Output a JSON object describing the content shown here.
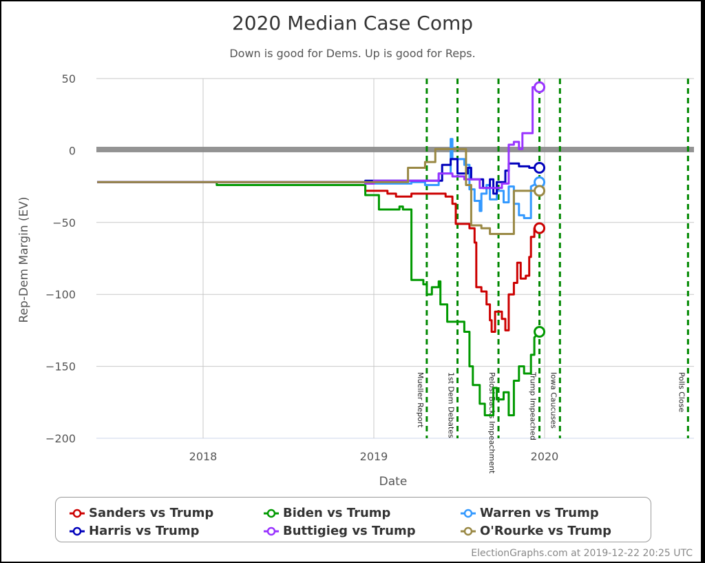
{
  "chart_data": {
    "type": "line",
    "title": "2020 Median Case Comp",
    "subtitle": "Down is good for Dems. Up is good for Reps.",
    "xlabel": "Date",
    "ylabel": "Rep-Dem Margin (EV)",
    "ylim": [
      -200,
      50
    ],
    "yticks": [
      50,
      0,
      -50,
      -100,
      -150,
      -200
    ],
    "xticks": [
      "2018",
      "2019",
      "2020"
    ],
    "xlim": [
      "2017-05",
      "2020-11-03"
    ],
    "grid": true,
    "legend_position": "bottom",
    "zero_line": 0,
    "events": [
      {
        "label": "Mueller Report",
        "date": 2019.31
      },
      {
        "label": "1st Dem Debates",
        "date": 2019.49
      },
      {
        "label": "Pelosi Backs Impeachment",
        "date": 2019.73
      },
      {
        "label": "Trump Impeached",
        "date": 2019.97
      },
      {
        "label": "Iowa Caucuses",
        "date": 2020.09
      },
      {
        "label": "Polls Close",
        "date": 2020.84
      }
    ],
    "series": [
      {
        "name": "Sanders vs Trump",
        "color": "#cc0000",
        "final": -54,
        "points": [
          [
            2017.38,
            -22
          ],
          [
            2018.95,
            -22
          ],
          [
            2018.95,
            -28
          ],
          [
            2019.08,
            -28
          ],
          [
            2019.08,
            -30
          ],
          [
            2019.13,
            -30
          ],
          [
            2019.13,
            -32
          ],
          [
            2019.22,
            -32
          ],
          [
            2019.22,
            -30
          ],
          [
            2019.42,
            -30
          ],
          [
            2019.42,
            -32
          ],
          [
            2019.46,
            -32
          ],
          [
            2019.46,
            -37
          ],
          [
            2019.48,
            -37
          ],
          [
            2019.48,
            -51
          ],
          [
            2019.56,
            -51
          ],
          [
            2019.56,
            -54
          ],
          [
            2019.59,
            -54
          ],
          [
            2019.59,
            -64
          ],
          [
            2019.6,
            -64
          ],
          [
            2019.6,
            -95
          ],
          [
            2019.63,
            -95
          ],
          [
            2019.63,
            -98
          ],
          [
            2019.66,
            -98
          ],
          [
            2019.66,
            -107
          ],
          [
            2019.68,
            -107
          ],
          [
            2019.68,
            -118
          ],
          [
            2019.69,
            -118
          ],
          [
            2019.69,
            -126
          ],
          [
            2019.71,
            -126
          ],
          [
            2019.71,
            -112
          ],
          [
            2019.75,
            -112
          ],
          [
            2019.75,
            -117
          ],
          [
            2019.77,
            -117
          ],
          [
            2019.77,
            -125
          ],
          [
            2019.79,
            -125
          ],
          [
            2019.79,
            -100
          ],
          [
            2019.82,
            -100
          ],
          [
            2019.82,
            -92
          ],
          [
            2019.84,
            -92
          ],
          [
            2019.84,
            -78
          ],
          [
            2019.86,
            -78
          ],
          [
            2019.86,
            -89
          ],
          [
            2019.89,
            -89
          ],
          [
            2019.89,
            -87
          ],
          [
            2019.91,
            -87
          ],
          [
            2019.91,
            -74
          ],
          [
            2019.92,
            -74
          ],
          [
            2019.92,
            -60
          ],
          [
            2019.94,
            -60
          ],
          [
            2019.94,
            -54
          ],
          [
            2019.97,
            -54
          ]
        ]
      },
      {
        "name": "Biden vs Trump",
        "color": "#009900",
        "final": -126,
        "points": [
          [
            2017.38,
            -22
          ],
          [
            2018.08,
            -22
          ],
          [
            2018.08,
            -24
          ],
          [
            2018.95,
            -24
          ],
          [
            2018.95,
            -31
          ],
          [
            2019.03,
            -31
          ],
          [
            2019.03,
            -41
          ],
          [
            2019.15,
            -41
          ],
          [
            2019.15,
            -39
          ],
          [
            2019.17,
            -39
          ],
          [
            2019.17,
            -41
          ],
          [
            2019.22,
            -41
          ],
          [
            2019.22,
            -90
          ],
          [
            2019.29,
            -90
          ],
          [
            2019.29,
            -93
          ],
          [
            2019.31,
            -93
          ],
          [
            2019.31,
            -100
          ],
          [
            2019.34,
            -100
          ],
          [
            2019.34,
            -95
          ],
          [
            2019.38,
            -95
          ],
          [
            2019.38,
            -91
          ],
          [
            2019.39,
            -91
          ],
          [
            2019.39,
            -107
          ],
          [
            2019.43,
            -107
          ],
          [
            2019.43,
            -119
          ],
          [
            2019.53,
            -119
          ],
          [
            2019.53,
            -126
          ],
          [
            2019.56,
            -126
          ],
          [
            2019.56,
            -150
          ],
          [
            2019.58,
            -150
          ],
          [
            2019.58,
            -163
          ],
          [
            2019.62,
            -163
          ],
          [
            2019.62,
            -176
          ],
          [
            2019.65,
            -176
          ],
          [
            2019.65,
            -184
          ],
          [
            2019.7,
            -184
          ],
          [
            2019.7,
            -165
          ],
          [
            2019.72,
            -165
          ],
          [
            2019.72,
            -173
          ],
          [
            2019.76,
            -173
          ],
          [
            2019.76,
            -168
          ],
          [
            2019.79,
            -168
          ],
          [
            2019.79,
            -184
          ],
          [
            2019.82,
            -184
          ],
          [
            2019.82,
            -160
          ],
          [
            2019.85,
            -160
          ],
          [
            2019.85,
            -150
          ],
          [
            2019.88,
            -150
          ],
          [
            2019.88,
            -155
          ],
          [
            2019.92,
            -155
          ],
          [
            2019.92,
            -142
          ],
          [
            2019.94,
            -142
          ],
          [
            2019.94,
            -130
          ],
          [
            2019.97,
            -126
          ]
        ]
      },
      {
        "name": "Warren vs Trump",
        "color": "#3399ff",
        "final": -22,
        "points": [
          [
            2017.38,
            -22
          ],
          [
            2018.95,
            -22
          ],
          [
            2018.95,
            -23
          ],
          [
            2019.22,
            -23
          ],
          [
            2019.22,
            -22
          ],
          [
            2019.3,
            -22
          ],
          [
            2019.3,
            -24
          ],
          [
            2019.38,
            -24
          ],
          [
            2019.38,
            -16
          ],
          [
            2019.45,
            -16
          ],
          [
            2019.45,
            8
          ],
          [
            2019.46,
            8
          ],
          [
            2019.46,
            -6
          ],
          [
            2019.53,
            -6
          ],
          [
            2019.53,
            -10
          ],
          [
            2019.56,
            -10
          ],
          [
            2019.56,
            -27
          ],
          [
            2019.59,
            -27
          ],
          [
            2019.59,
            -35
          ],
          [
            2019.62,
            -35
          ],
          [
            2019.62,
            -42
          ],
          [
            2019.63,
            -42
          ],
          [
            2019.63,
            -30
          ],
          [
            2019.66,
            -30
          ],
          [
            2019.66,
            -24
          ],
          [
            2019.68,
            -24
          ],
          [
            2019.68,
            -34
          ],
          [
            2019.72,
            -34
          ],
          [
            2019.72,
            -28
          ],
          [
            2019.76,
            -28
          ],
          [
            2019.76,
            -36
          ],
          [
            2019.79,
            -36
          ],
          [
            2019.79,
            -25
          ],
          [
            2019.82,
            -25
          ],
          [
            2019.82,
            -37
          ],
          [
            2019.85,
            -37
          ],
          [
            2019.85,
            -45
          ],
          [
            2019.88,
            -45
          ],
          [
            2019.88,
            -47
          ],
          [
            2019.92,
            -47
          ],
          [
            2019.92,
            -25
          ],
          [
            2019.97,
            -22
          ]
        ]
      },
      {
        "name": "Harris vs Trump",
        "color": "#0000bb",
        "final": -12,
        "points": [
          [
            2017.38,
            -22
          ],
          [
            2018.95,
            -22
          ],
          [
            2018.95,
            -21
          ],
          [
            2019.4,
            -21
          ],
          [
            2019.4,
            -10
          ],
          [
            2019.45,
            -10
          ],
          [
            2019.45,
            -6
          ],
          [
            2019.49,
            -6
          ],
          [
            2019.49,
            -16
          ],
          [
            2019.55,
            -16
          ],
          [
            2019.55,
            -12
          ],
          [
            2019.57,
            -12
          ],
          [
            2019.57,
            -20
          ],
          [
            2019.64,
            -20
          ],
          [
            2019.64,
            -26
          ],
          [
            2019.68,
            -26
          ],
          [
            2019.68,
            -20
          ],
          [
            2019.7,
            -20
          ],
          [
            2019.7,
            -30
          ],
          [
            2019.72,
            -30
          ],
          [
            2019.72,
            -22
          ],
          [
            2019.77,
            -22
          ],
          [
            2019.77,
            -14
          ],
          [
            2019.79,
            -14
          ],
          [
            2019.79,
            -9
          ],
          [
            2019.85,
            -9
          ],
          [
            2019.85,
            -11
          ],
          [
            2019.91,
            -11
          ],
          [
            2019.91,
            -12
          ],
          [
            2019.97,
            -12
          ]
        ]
      },
      {
        "name": "Buttigieg vs Trump",
        "color": "#9933ff",
        "final": 44,
        "points": [
          [
            2017.38,
            -22
          ],
          [
            2018.95,
            -22
          ],
          [
            2018.95,
            -23
          ],
          [
            2019.0,
            -23
          ],
          [
            2019.0,
            -21
          ],
          [
            2019.38,
            -21
          ],
          [
            2019.38,
            -16
          ],
          [
            2019.46,
            -16
          ],
          [
            2019.46,
            -18
          ],
          [
            2019.53,
            -18
          ],
          [
            2019.53,
            -20
          ],
          [
            2019.62,
            -20
          ],
          [
            2019.62,
            -26
          ],
          [
            2019.75,
            -26
          ],
          [
            2019.75,
            -23
          ],
          [
            2019.79,
            -23
          ],
          [
            2019.79,
            4
          ],
          [
            2019.82,
            4
          ],
          [
            2019.82,
            6
          ],
          [
            2019.85,
            6
          ],
          [
            2019.85,
            1
          ],
          [
            2019.87,
            1
          ],
          [
            2019.87,
            12
          ],
          [
            2019.93,
            12
          ],
          [
            2019.93,
            44
          ],
          [
            2019.97,
            44
          ]
        ]
      },
      {
        "name": "O'Rourke vs Trump",
        "color": "#998844",
        "final": -28,
        "points": [
          [
            2017.38,
            -22
          ],
          [
            2019.2,
            -22
          ],
          [
            2019.2,
            -12
          ],
          [
            2019.3,
            -12
          ],
          [
            2019.3,
            -8
          ],
          [
            2019.36,
            -8
          ],
          [
            2019.36,
            1
          ],
          [
            2019.54,
            1
          ],
          [
            2019.54,
            -24
          ],
          [
            2019.57,
            -24
          ],
          [
            2019.57,
            -52
          ],
          [
            2019.63,
            -52
          ],
          [
            2019.63,
            -54
          ],
          [
            2019.68,
            -54
          ],
          [
            2019.68,
            -58
          ],
          [
            2019.82,
            -58
          ],
          [
            2019.82,
            -28
          ],
          [
            2019.97,
            -28
          ]
        ]
      }
    ]
  },
  "legend": {
    "items": [
      {
        "label": "Sanders vs Trump",
        "color": "#cc0000"
      },
      {
        "label": "Biden vs Trump",
        "color": "#009900"
      },
      {
        "label": "Warren vs Trump",
        "color": "#3399ff"
      },
      {
        "label": "Harris vs Trump",
        "color": "#0000bb"
      },
      {
        "label": "Buttigieg vs Trump",
        "color": "#9933ff"
      },
      {
        "label": "O'Rourke vs Trump",
        "color": "#998844"
      }
    ]
  },
  "credit": "ElectionGraphs.com at 2019-12-22 20:25 UTC"
}
